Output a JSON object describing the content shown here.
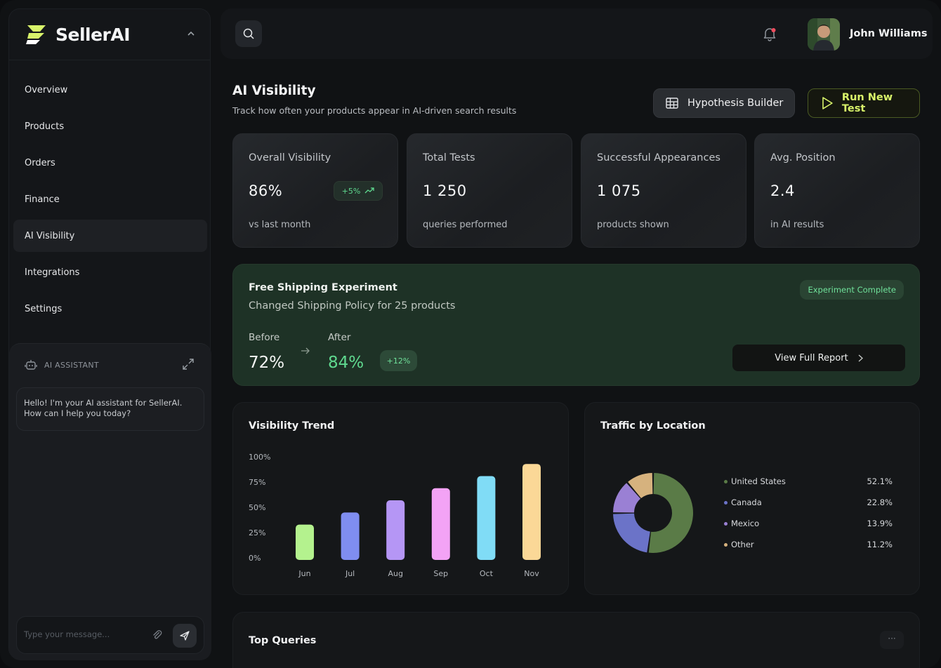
{
  "brand": {
    "name": "SellerAI"
  },
  "nav": {
    "items": [
      {
        "label": "Overview"
      },
      {
        "label": "Products"
      },
      {
        "label": "Orders"
      },
      {
        "label": "Finance"
      },
      {
        "label": "AI Visibility",
        "active": true
      },
      {
        "label": "Integrations"
      },
      {
        "label": "Settings"
      }
    ]
  },
  "assistant": {
    "title": "AI ASSISTANT",
    "message": "Hello! I'm your AI assistant for SellerAI. How can I help you today?",
    "input_placeholder": "Type your message..."
  },
  "user": {
    "name": "John Williams"
  },
  "header": {
    "title": "AI Visibility",
    "subtitle": "Track how often your products appear in AI-driven search results",
    "hypothesis_label": "Hypothesis Builder",
    "run_label": "Run New Test"
  },
  "stats": [
    {
      "label": "Overall Visibility",
      "value": "86%",
      "sub": "vs last month",
      "badge": "+5%"
    },
    {
      "label": "Total Tests",
      "value": "1 250",
      "sub": "queries performed"
    },
    {
      "label": "Successful Appearances",
      "value": "1 075",
      "sub": "products shown"
    },
    {
      "label": "Avg. Position",
      "value": "2.4",
      "sub": "in AI results"
    }
  ],
  "experiment": {
    "title": "Free Shipping Experiment",
    "subtitle": "Changed Shipping Policy for 25 products",
    "status": "Experiment Complete",
    "before_label": "Before",
    "before_value": "72%",
    "after_label": "After",
    "after_value": "84%",
    "delta": "+12%",
    "report_label": "View Full Report"
  },
  "trend": {
    "title": "Visibility Trend"
  },
  "location": {
    "title": "Traffic by Location"
  },
  "queries": {
    "title": "Top Queries",
    "more": "···"
  },
  "colors": {
    "accent": "#d8f36a",
    "positive": "#5fd98f",
    "bars": [
      "#b4f28e",
      "#7f8df0",
      "#b596f5",
      "#f3a3f5",
      "#80dcf6",
      "#fbd897"
    ],
    "donut": [
      "#5a7b47",
      "#6b73c8",
      "#9a80d4",
      "#d6b27e"
    ]
  },
  "chart_data": [
    {
      "type": "bar",
      "title": "Visibility Trend",
      "categories": [
        "Jun",
        "Jul",
        "Aug",
        "Sep",
        "Oct",
        "Nov"
      ],
      "values": [
        35,
        47,
        59,
        71,
        83,
        95
      ],
      "ylim": [
        0,
        100
      ],
      "yticks": [
        "100%",
        "75%",
        "50%",
        "25%",
        "0%"
      ],
      "ytick_values": [
        100,
        75,
        50,
        25,
        0
      ],
      "grid": false
    },
    {
      "type": "pie",
      "title": "Traffic by Location",
      "categories": [
        "United States",
        "Canada",
        "Mexico",
        "Other"
      ],
      "values": [
        52.1,
        22.8,
        13.9,
        11.2
      ],
      "labels": [
        "52.1%",
        "22.8%",
        "13.9%",
        "11.2%"
      ],
      "legend": "right"
    }
  ]
}
